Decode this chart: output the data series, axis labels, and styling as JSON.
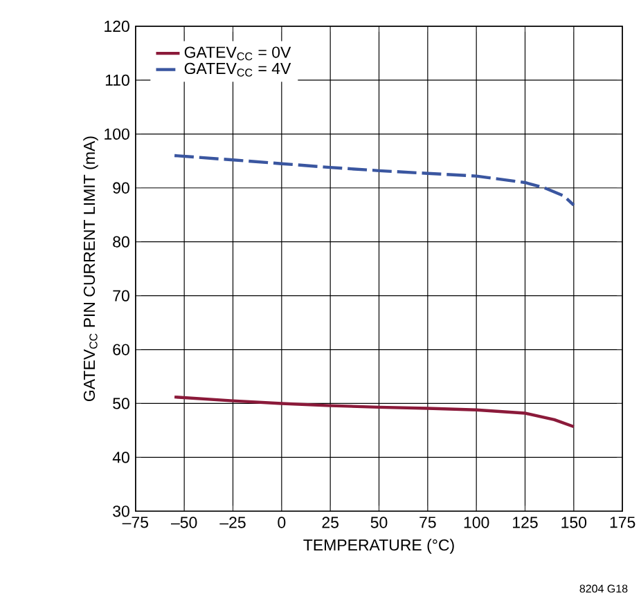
{
  "chart_data": {
    "type": "line",
    "xlabel": "TEMPERATURE (°C)",
    "ylabel": "GATEV$_{CC}$ PIN CURRENT LIMIT (mA)",
    "annotations": [
      "8204 G18"
    ],
    "series": [
      {
        "name": "GATEV$_{CC}$ = 0V",
        "color": "#8b1a3a",
        "line_style": "solid",
        "x": [
          -55,
          -25,
          0,
          25,
          50,
          75,
          100,
          125,
          140,
          150
        ],
        "values": [
          51.2,
          50.5,
          50,
          49.6,
          49.3,
          49.1,
          48.8,
          48.2,
          47,
          45.7
        ]
      },
      {
        "name": "GATEV$_{CC}$ = 4V",
        "color": "#3a56a0",
        "line_style": "dashed",
        "x": [
          -55,
          -25,
          0,
          25,
          50,
          75,
          100,
          125,
          135,
          145,
          150
        ],
        "values": [
          96,
          95.2,
          94.5,
          93.8,
          93.2,
          92.7,
          92.2,
          91,
          90,
          88.5,
          86.8
        ]
      }
    ],
    "xlim": [
      -75,
      175
    ],
    "xticks": [
      {
        "value": -75,
        "label": "–75"
      },
      {
        "value": -50,
        "label": "–50"
      },
      {
        "value": -25,
        "label": "–25"
      },
      0,
      25,
      50,
      75,
      100,
      125,
      150,
      175
    ],
    "ylim": [
      30,
      120
    ],
    "yticks": [
      30,
      40,
      50,
      60,
      70,
      80,
      90,
      100,
      110,
      120
    ],
    "grid": true,
    "legend": "top left",
    "marker": "none"
  }
}
